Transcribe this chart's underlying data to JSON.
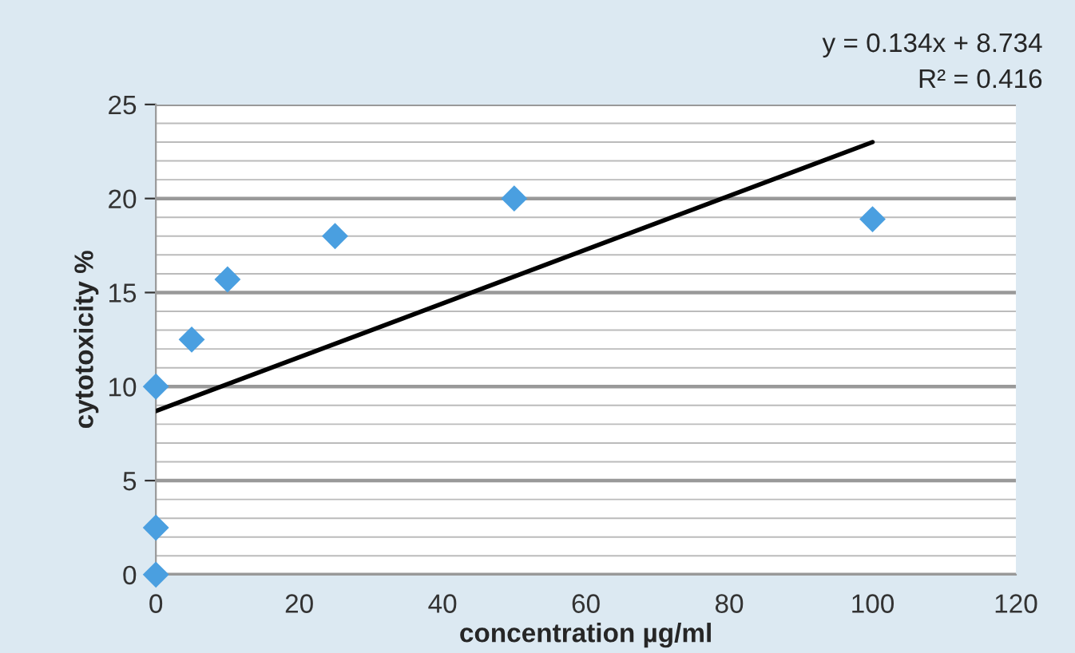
{
  "chart_data": {
    "type": "scatter",
    "xlabel": "concentration µg/ml",
    "ylabel": "cytotoxicity %",
    "annotations": [
      "y = 0.134x + 8.734",
      "R² = 0.416"
    ],
    "series": [
      {
        "color": "#4a9fe0",
        "marker": "diamond",
        "x": [
          0,
          0,
          0,
          5,
          10,
          25,
          50,
          100
        ],
        "values": [
          0,
          2.5,
          10,
          12.5,
          15.7,
          18,
          20,
          18.9
        ]
      },
      {
        "type": "line",
        "color": "#000000",
        "marker": "none",
        "line_style": "solid",
        "x": [
          0,
          100
        ],
        "values": [
          8.7,
          23
        ]
      }
    ],
    "xlim": [
      0,
      120
    ],
    "xticks": [
      0,
      20,
      40,
      60,
      80,
      100,
      120
    ],
    "ylim": [
      0,
      25
    ],
    "yticks": [
      0,
      {
        "value": 1,
        "label": null
      },
      {
        "value": 2,
        "label": null
      },
      {
        "value": 3,
        "label": null
      },
      {
        "value": 4,
        "label": null
      },
      5,
      {
        "value": 6,
        "label": null
      },
      {
        "value": 7,
        "label": null
      },
      {
        "value": 8,
        "label": null
      },
      {
        "value": 9,
        "label": null
      },
      10,
      {
        "value": 11,
        "label": null
      },
      {
        "value": 12,
        "label": null
      },
      {
        "value": 13,
        "label": null
      },
      {
        "value": 14,
        "label": null
      },
      15,
      {
        "value": 16,
        "label": null
      },
      {
        "value": 17,
        "label": null
      },
      {
        "value": 18,
        "label": null
      },
      {
        "value": 19,
        "label": null
      },
      20,
      {
        "value": 21,
        "label": null
      },
      {
        "value": 22,
        "label": null
      },
      {
        "value": 23,
        "label": null
      },
      {
        "value": 24,
        "label": null
      },
      25
    ],
    "grid": "y",
    "legend": false
  }
}
